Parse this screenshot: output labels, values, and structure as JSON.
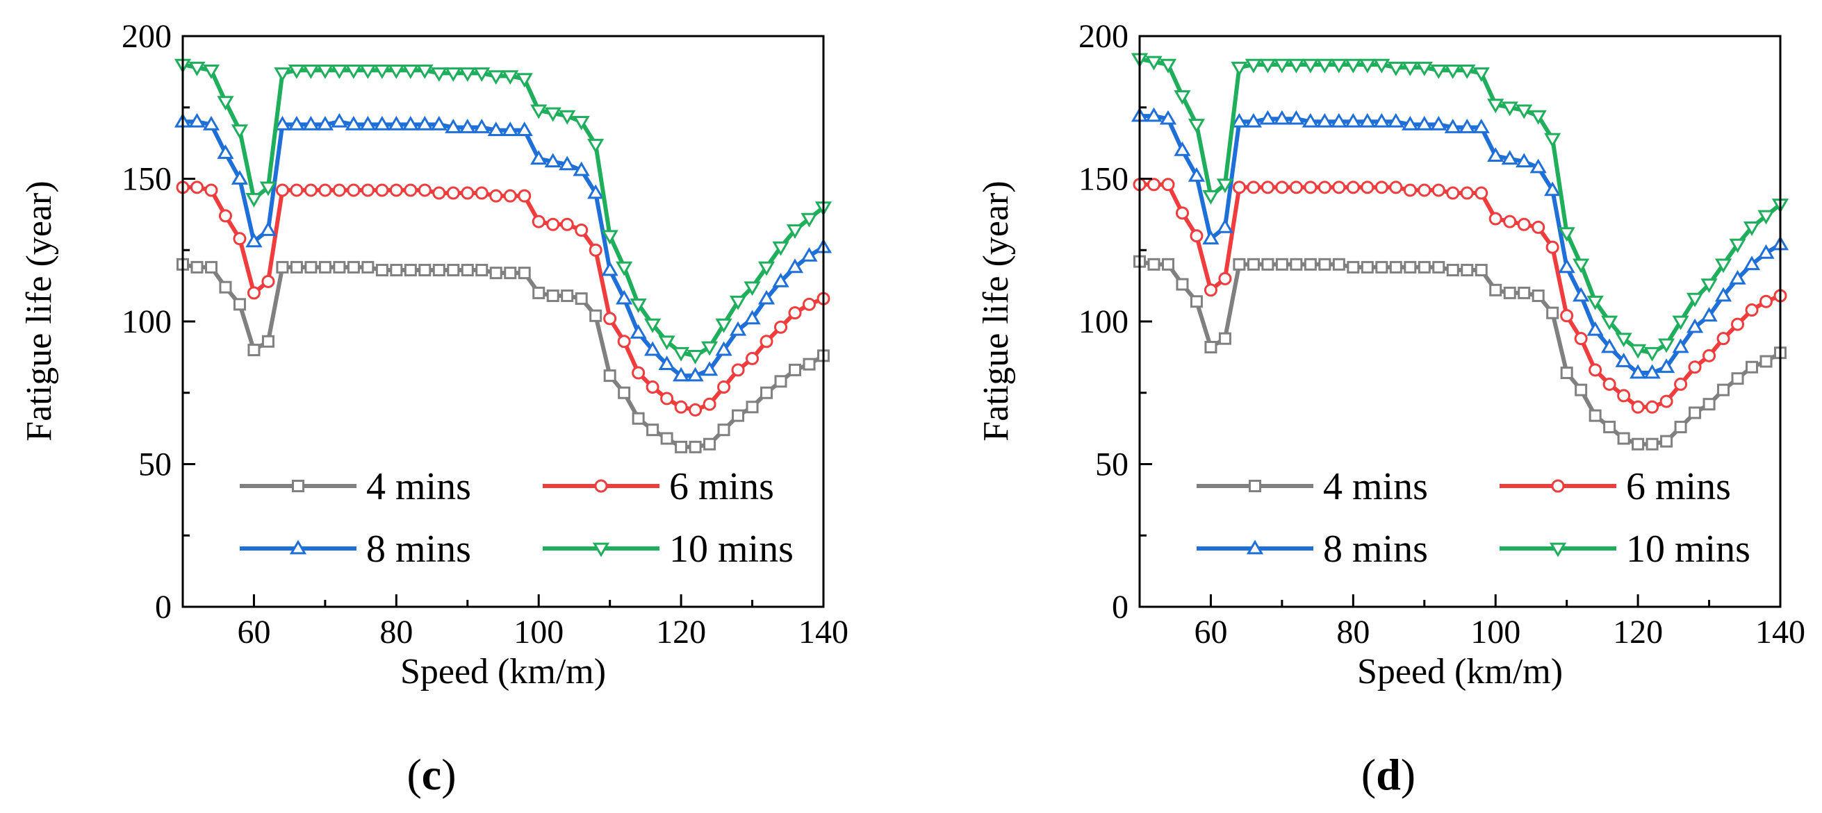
{
  "series_colors": [
    "#808080",
    "#f03c3c",
    "#1f6fd8",
    "#1fae5c"
  ],
  "series_markers": [
    "square",
    "circle",
    "triangle-up",
    "triangle-down"
  ],
  "chart_data": [
    {
      "type": "line",
      "panel_label": "c",
      "xlabel": "Speed (km/m)",
      "ylabel": "Fatigue life (year)",
      "xlim": [
        50,
        140
      ],
      "ylim": [
        0,
        200
      ],
      "xticks": [
        60,
        80,
        100,
        120,
        140
      ],
      "yticks": [
        0,
        50,
        100,
        150,
        200
      ],
      "grid": false,
      "legend": "bottom",
      "x": [
        50,
        52,
        54,
        56,
        58,
        60,
        62,
        64,
        66,
        68,
        70,
        72,
        74,
        76,
        78,
        80,
        82,
        84,
        86,
        88,
        90,
        92,
        94,
        96,
        98,
        100,
        102,
        104,
        106,
        108,
        110,
        112,
        114,
        116,
        118,
        120,
        122,
        124,
        126,
        128,
        130,
        132,
        134,
        136,
        138,
        140
      ],
      "series": [
        {
          "name": "4 mins",
          "values": [
            120,
            119,
            119,
            112,
            106,
            90,
            93,
            119,
            119,
            119,
            119,
            119,
            119,
            119,
            118,
            118,
            118,
            118,
            118,
            118,
            118,
            118,
            117,
            117,
            117,
            110,
            109,
            109,
            108,
            102,
            81,
            75,
            66,
            62,
            59,
            56,
            56,
            57,
            62,
            67,
            70,
            75,
            79,
            83,
            85,
            88
          ]
        },
        {
          "name": "6 mins",
          "values": [
            147,
            147,
            146,
            137,
            129,
            110,
            114,
            146,
            146,
            146,
            146,
            146,
            146,
            146,
            146,
            146,
            146,
            146,
            145,
            145,
            145,
            145,
            144,
            144,
            144,
            135,
            134,
            134,
            132,
            125,
            101,
            93,
            82,
            77,
            73,
            70,
            69,
            71,
            77,
            83,
            87,
            93,
            98,
            103,
            106,
            108
          ]
        },
        {
          "name": "8 mins",
          "values": [
            170,
            170,
            169,
            159,
            150,
            128,
            132,
            169,
            169,
            169,
            169,
            170,
            169,
            169,
            169,
            169,
            169,
            169,
            169,
            168,
            168,
            168,
            167,
            167,
            167,
            157,
            156,
            155,
            153,
            145,
            118,
            108,
            96,
            90,
            85,
            81,
            81,
            83,
            90,
            97,
            101,
            108,
            114,
            119,
            123,
            126
          ]
        },
        {
          "name": "10 mins",
          "values": [
            190,
            189,
            188,
            177,
            167,
            143,
            147,
            187,
            188,
            188,
            188,
            188,
            188,
            188,
            188,
            188,
            188,
            188,
            187,
            187,
            187,
            187,
            186,
            186,
            185,
            174,
            173,
            172,
            170,
            162,
            130,
            119,
            106,
            99,
            93,
            89,
            88,
            91,
            99,
            107,
            112,
            119,
            126,
            132,
            136,
            140
          ]
        }
      ]
    },
    {
      "type": "line",
      "panel_label": "d",
      "xlabel": "Speed (km/m)",
      "ylabel": "Fatigue life (year)",
      "xlim": [
        50,
        140
      ],
      "ylim": [
        0,
        200
      ],
      "xticks": [
        60,
        80,
        100,
        120,
        140
      ],
      "yticks": [
        0,
        50,
        100,
        150,
        200
      ],
      "grid": false,
      "legend": "bottom",
      "x": [
        50,
        52,
        54,
        56,
        58,
        60,
        62,
        64,
        66,
        68,
        70,
        72,
        74,
        76,
        78,
        80,
        82,
        84,
        86,
        88,
        90,
        92,
        94,
        96,
        98,
        100,
        102,
        104,
        106,
        108,
        110,
        112,
        114,
        116,
        118,
        120,
        122,
        124,
        126,
        128,
        130,
        132,
        134,
        136,
        138,
        140
      ],
      "series": [
        {
          "name": "4 mins",
          "values": [
            121,
            120,
            120,
            113,
            107,
            91,
            94,
            120,
            120,
            120,
            120,
            120,
            120,
            120,
            120,
            119,
            119,
            119,
            119,
            119,
            119,
            119,
            118,
            118,
            118,
            111,
            110,
            110,
            109,
            103,
            82,
            76,
            67,
            63,
            59,
            57,
            57,
            58,
            63,
            68,
            71,
            76,
            80,
            84,
            86,
            89
          ]
        },
        {
          "name": "6 mins",
          "values": [
            148,
            148,
            148,
            138,
            130,
            111,
            115,
            147,
            147,
            147,
            147,
            147,
            147,
            147,
            147,
            147,
            147,
            147,
            147,
            146,
            146,
            146,
            145,
            145,
            145,
            136,
            135,
            134,
            133,
            126,
            102,
            94,
            83,
            78,
            74,
            70,
            70,
            72,
            78,
            84,
            88,
            94,
            99,
            104,
            107,
            109
          ]
        },
        {
          "name": "8 mins",
          "values": [
            172,
            172,
            171,
            160,
            151,
            129,
            133,
            170,
            170,
            171,
            171,
            171,
            170,
            170,
            170,
            170,
            170,
            170,
            170,
            169,
            169,
            169,
            168,
            168,
            168,
            158,
            157,
            156,
            154,
            146,
            119,
            109,
            97,
            91,
            86,
            82,
            82,
            84,
            91,
            98,
            102,
            109,
            115,
            120,
            124,
            127
          ]
        },
        {
          "name": "10 mins",
          "values": [
            192,
            191,
            190,
            179,
            169,
            144,
            148,
            189,
            190,
            190,
            190,
            190,
            190,
            190,
            190,
            190,
            190,
            190,
            189,
            189,
            189,
            188,
            188,
            188,
            187,
            176,
            175,
            174,
            172,
            164,
            131,
            120,
            107,
            100,
            94,
            90,
            89,
            92,
            100,
            108,
            113,
            120,
            127,
            133,
            137,
            141
          ]
        }
      ]
    }
  ]
}
